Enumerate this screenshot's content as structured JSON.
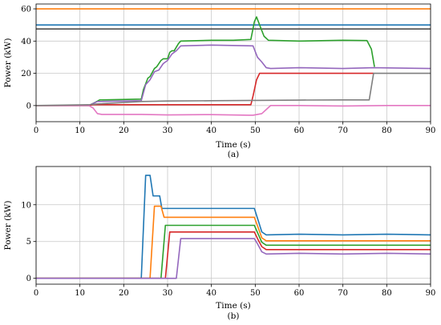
{
  "chart_data": [
    {
      "type": "line",
      "panel": "(a)",
      "xlabel": "Time (s)",
      "ylabel": "Power (kW)",
      "xlim": [
        0,
        90
      ],
      "ylim": [
        -10,
        63
      ],
      "xticks": [
        0,
        10,
        20,
        30,
        40,
        50,
        60,
        70,
        80,
        90
      ],
      "yticks": [
        0,
        20,
        40,
        60
      ],
      "grid": true,
      "legend": "none",
      "series": [
        {
          "color": "#ff7f0e",
          "x": [
            0,
            90
          ],
          "y": [
            60,
            60
          ]
        },
        {
          "color": "#1f77b4",
          "x": [
            0,
            90
          ],
          "y": [
            50,
            50
          ]
        },
        {
          "color": "#4d4d4d",
          "x": [
            0,
            90
          ],
          "y": [
            47.5,
            47.5
          ]
        },
        {
          "color": "#2ca02c",
          "x": [
            0,
            12,
            13.5,
            14.5,
            24,
            24.5,
            25.5,
            26,
            27,
            27.5,
            28.5,
            29,
            30,
            30.5,
            31,
            31.5,
            32.5,
            33,
            40,
            45,
            49,
            49.8,
            50.3,
            51,
            52,
            53,
            60,
            70,
            75.5,
            76.5,
            77.2
          ],
          "y": [
            0,
            0,
            2,
            3.5,
            4,
            10,
            17,
            18,
            23,
            24,
            28,
            29,
            29,
            33,
            34,
            34,
            38.5,
            40,
            40.5,
            40.5,
            41,
            52,
            55,
            50,
            43,
            40.5,
            40,
            40.5,
            40.3,
            35,
            24
          ]
        },
        {
          "color": "#9467bd",
          "x": [
            0,
            12,
            14,
            24,
            25,
            26,
            27,
            28,
            29,
            30,
            31,
            32,
            33,
            40,
            49.5,
            50.5,
            51.5,
            52.5,
            53.5,
            60,
            70,
            77,
            90
          ],
          "y": [
            0,
            0,
            2.5,
            3,
            13,
            16,
            21,
            22,
            26,
            28,
            32,
            34,
            37,
            37.5,
            37,
            30,
            27,
            23.5,
            23,
            23.5,
            23,
            23.5,
            23
          ]
        },
        {
          "color": "#d62728",
          "x": [
            0,
            12,
            13,
            14,
            24,
            49,
            49.5,
            50.3,
            51,
            60,
            76.5,
            77
          ],
          "y": [
            0,
            0,
            0.5,
            0.5,
            0.5,
            0.5,
            6,
            16,
            20,
            20,
            20,
            20
          ]
        },
        {
          "color": "#e377c2",
          "x": [
            0,
            12,
            13,
            14,
            15,
            24,
            30,
            40,
            48.5,
            49.5,
            50.5,
            51.5,
            52.5,
            53.5,
            60,
            70,
            80,
            90
          ],
          "y": [
            0,
            0,
            -1.5,
            -5,
            -5.5,
            -5.5,
            -5.8,
            -5.6,
            -6,
            -6,
            -5.5,
            -5,
            -2.5,
            0,
            0,
            -0.3,
            0,
            0
          ]
        },
        {
          "color": "#7f7f7f",
          "x": [
            0,
            12,
            14,
            24,
            30,
            40,
            50,
            60,
            70,
            76,
            77,
            90
          ],
          "y": [
            0,
            0.5,
            1,
            2.5,
            2.8,
            3,
            3.2,
            3.4,
            3.5,
            3.5,
            20,
            20
          ]
        }
      ]
    },
    {
      "type": "line",
      "panel": "(b)",
      "xlabel": "Time (s)",
      "ylabel": "Power (kW)",
      "xlim": [
        0,
        90
      ],
      "ylim": [
        -0.8,
        15.2
      ],
      "xticks": [
        0,
        10,
        20,
        30,
        40,
        50,
        60,
        70,
        80,
        90
      ],
      "yticks": [
        0,
        5,
        10
      ],
      "grid": true,
      "legend": "none",
      "series": [
        {
          "color": "#1f77b4",
          "x": [
            0,
            24,
            25,
            26,
            26.7,
            27.2,
            28.2,
            28.7,
            30,
            40,
            49.8,
            50.6,
            51.5,
            52.5,
            60,
            70,
            80,
            90
          ],
          "y": [
            0,
            0,
            14,
            14,
            11.2,
            11.2,
            11.2,
            9.5,
            9.5,
            9.5,
            9.5,
            8,
            6.3,
            5.9,
            6,
            5.9,
            6,
            5.9
          ]
        },
        {
          "color": "#ff7f0e",
          "x": [
            0,
            26,
            27,
            27.5,
            28.5,
            29.2,
            30,
            40,
            49.8,
            50.6,
            51.5,
            52.5,
            60,
            70,
            80,
            90
          ],
          "y": [
            0,
            0,
            9.8,
            9.8,
            9.8,
            8.3,
            8.3,
            8.3,
            8.3,
            7,
            5.5,
            5.1,
            5.1,
            5.1,
            5.1,
            5.1
          ]
        },
        {
          "color": "#2ca02c",
          "x": [
            0,
            28.5,
            29.5,
            30,
            40,
            49.8,
            50.6,
            51.5,
            52.5,
            60,
            70,
            80,
            90
          ],
          "y": [
            0,
            0,
            7.2,
            7.2,
            7.2,
            7.2,
            6.1,
            4.9,
            4.5,
            4.5,
            4.5,
            4.5,
            4.5
          ]
        },
        {
          "color": "#d62728",
          "x": [
            0,
            29.5,
            30.5,
            31,
            40,
            49.8,
            50.6,
            51.5,
            52.5,
            60,
            70,
            80,
            90
          ],
          "y": [
            0,
            0,
            6.3,
            6.3,
            6.3,
            6.3,
            5.3,
            4.3,
            3.9,
            3.9,
            3.9,
            3.9,
            3.9
          ]
        },
        {
          "color": "#9467bd",
          "x": [
            0,
            32,
            33,
            34,
            40,
            49.8,
            50.6,
            51.5,
            52.5,
            60,
            70,
            80,
            90
          ],
          "y": [
            0,
            0,
            5.4,
            5.4,
            5.4,
            5.4,
            4.6,
            3.6,
            3.3,
            3.4,
            3.3,
            3.4,
            3.3
          ]
        }
      ]
    }
  ]
}
